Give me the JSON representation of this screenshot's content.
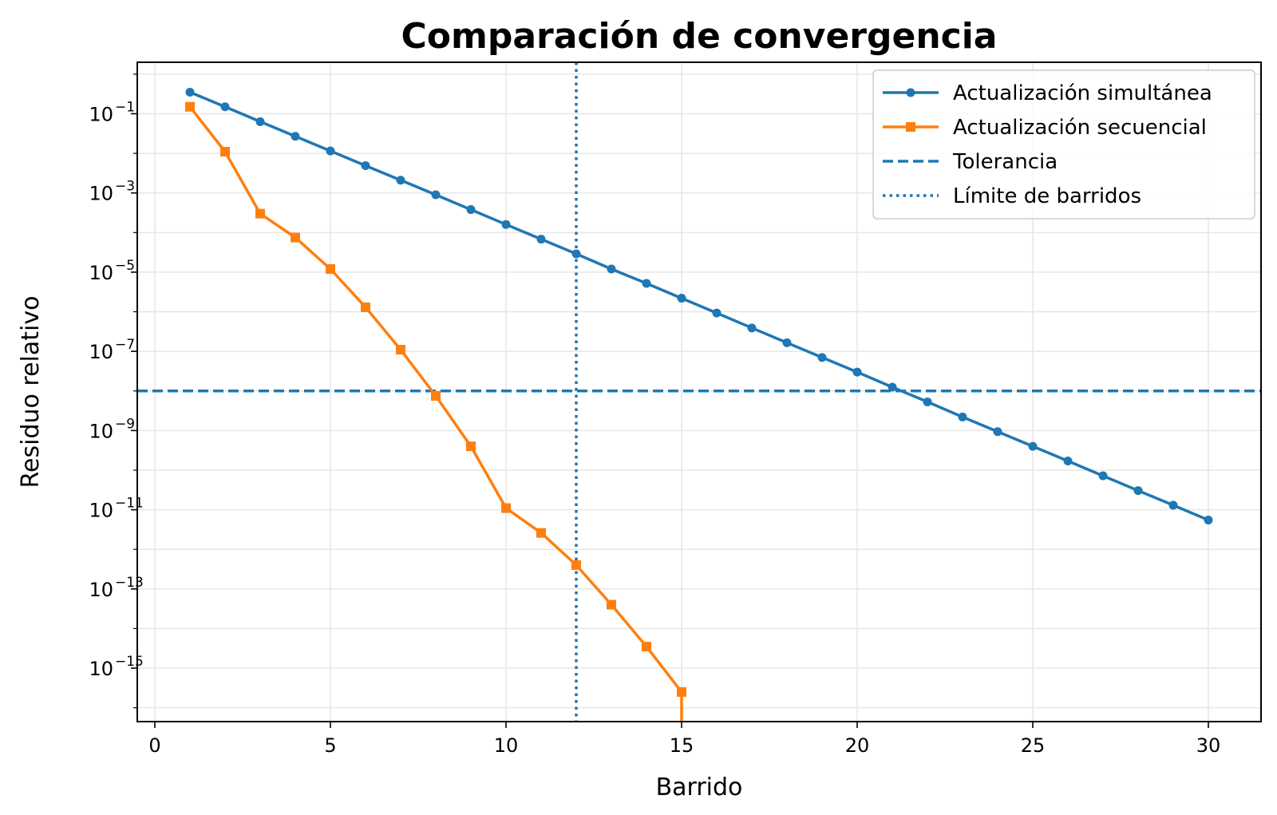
{
  "chart_data": {
    "type": "line",
    "title": "Comparación de convergencia",
    "xlabel": "Barrido",
    "ylabel": "Residuo relativo",
    "xlim": [
      -0.5,
      31.5
    ],
    "ylim_exp": [
      -16.35,
      0.3
    ],
    "yscale": "log",
    "xticks": [
      0,
      5,
      10,
      15,
      20,
      25,
      30
    ],
    "yticks_exp": [
      -1,
      -3,
      -5,
      -7,
      -9,
      -11,
      -13,
      -15
    ],
    "grid": true,
    "legend_position": "top-right",
    "series": [
      {
        "name": "Actualización simultánea",
        "color": "#1f77b4",
        "marker": "circle",
        "x": [
          1,
          2,
          3,
          4,
          5,
          6,
          7,
          8,
          9,
          10,
          11,
          12,
          13,
          14,
          15,
          16,
          17,
          18,
          19,
          20,
          21,
          22,
          23,
          24,
          25,
          26,
          27,
          28,
          29,
          30
        ],
        "y": [
          0.35,
          0.15,
          0.063,
          0.027,
          0.0115,
          0.0049,
          0.0021,
          0.0009,
          0.00038,
          0.00016,
          6.8e-05,
          2.9e-05,
          1.2e-05,
          5.2e-06,
          2.2e-06,
          9.3e-07,
          3.9e-07,
          1.65e-07,
          7e-08,
          3e-08,
          1.25e-08,
          5.3e-09,
          2.2e-09,
          9.4e-10,
          4e-10,
          1.7e-10,
          7.2e-11,
          3.05e-11,
          1.3e-11,
          5.5e-12
        ]
      },
      {
        "name": "Actualización secuencial",
        "color": "#ff7f0e",
        "marker": "square",
        "x": [
          1,
          2,
          3,
          4,
          5,
          6,
          7,
          8,
          9,
          10,
          11,
          12,
          13,
          14,
          15
        ],
        "y": [
          0.15,
          0.011,
          0.0003,
          7.5e-05,
          1.2e-05,
          1.3e-06,
          1.1e-07,
          7.5e-09,
          4e-10,
          1.1e-11,
          2.6e-12,
          4e-13,
          4e-14,
          3.5e-15,
          2.5e-16
        ]
      }
    ],
    "tolerance": {
      "name": "Tolerancia",
      "y": 1e-08,
      "color": "#1f77b4",
      "style": "dashed"
    },
    "sweep_limit": {
      "name": "Límite de barridos",
      "x": 12,
      "color": "#1f77b4",
      "style": "dotted"
    }
  }
}
